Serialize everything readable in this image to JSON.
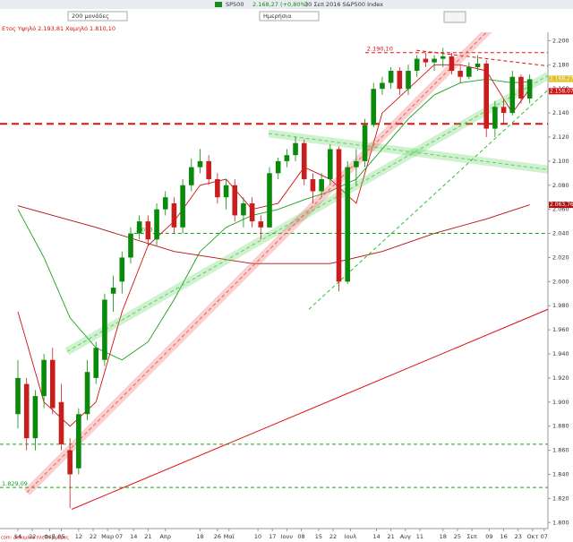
{
  "header": {
    "symbol": "SP500",
    "quote": "2.168,27 (+0,80%)",
    "date": "30 Σεπ 2016 S&P500 Index",
    "range_select": "200 μονάδες",
    "period_select": "Ημερήσια",
    "year_range": "Ετος Υψηλό 2.193,81 Χαμηλό 1.810,10",
    "footer": "com: Δεδομένα πλείον ημέρας"
  },
  "chart_data": {
    "type": "candlestick",
    "up_color": "#0a8a0a",
    "down_color": "#c81e1e",
    "xlim": [
      -6.2,
      183.3
    ],
    "ylim": [
      1795,
      2207
    ],
    "xticks": [
      {
        "value": 0,
        "label": "14"
      },
      {
        "value": 5,
        "label": "22"
      },
      {
        "value": 11,
        "label": "Φεβ"
      },
      {
        "value": 15,
        "label": "05"
      },
      {
        "value": 21,
        "label": "12"
      },
      {
        "value": 26,
        "label": "22"
      },
      {
        "value": 31,
        "label": "Μαρ"
      },
      {
        "value": 35,
        "label": "07"
      },
      {
        "value": 40,
        "label": "14"
      },
      {
        "value": 45,
        "label": "21"
      },
      {
        "value": 51,
        "label": "Απρ"
      },
      {
        "value": 63,
        "label": "18"
      },
      {
        "value": 69,
        "label": "26"
      },
      {
        "value": 73,
        "label": "Μαϊ"
      },
      {
        "value": 83,
        "label": "10"
      },
      {
        "value": 88,
        "label": "17"
      },
      {
        "value": 93,
        "label": "Ιουν"
      },
      {
        "value": 98,
        "label": "08"
      },
      {
        "value": 104,
        "label": "15"
      },
      {
        "value": 109,
        "label": "22"
      },
      {
        "value": 115,
        "label": "Ιουλ"
      },
      {
        "value": 124,
        "label": "14"
      },
      {
        "value": 129,
        "label": "21"
      },
      {
        "value": 134,
        "label": "Αυγ"
      },
      {
        "value": 139,
        "label": "11"
      },
      {
        "value": 147,
        "label": "18"
      },
      {
        "value": 152,
        "label": "25"
      },
      {
        "value": 157,
        "label": "Σεπ"
      },
      {
        "value": 163,
        "label": "09"
      },
      {
        "value": 168,
        "label": "16"
      },
      {
        "value": 173,
        "label": "23"
      },
      {
        "value": 178,
        "label": "Οκτ"
      },
      {
        "value": 182,
        "label": "07"
      }
    ],
    "yticks": [
      {
        "value": 1800,
        "label": "1.800"
      },
      {
        "value": 1820,
        "label": "1.820"
      },
      {
        "value": 1840,
        "label": "1.840"
      },
      {
        "value": 1860,
        "label": "1.860"
      },
      {
        "value": 1880,
        "label": "1.880"
      },
      {
        "value": 1900,
        "label": "1.900"
      },
      {
        "value": 1920,
        "label": "1.920"
      },
      {
        "value": 1940,
        "label": "1.940"
      },
      {
        "value": 1960,
        "label": "1.960"
      },
      {
        "value": 1980,
        "label": "1.980"
      },
      {
        "value": 2000,
        "label": "2.000"
      },
      {
        "value": 2020,
        "label": "2.020"
      },
      {
        "value": 2040,
        "label": "2.040"
      },
      {
        "value": 2060,
        "label": "2.060"
      },
      {
        "value": 2080,
        "label": "2.080"
      },
      {
        "value": 2100,
        "label": "2.100"
      },
      {
        "value": 2120,
        "label": "2.120"
      },
      {
        "value": 2140,
        "label": "2.140"
      },
      {
        "value": 2160,
        "label": "2.160"
      },
      {
        "value": 2180,
        "label": "2.180"
      },
      {
        "value": 2200,
        "label": "2.200"
      }
    ],
    "x": [
      0,
      3,
      6,
      9,
      12,
      15,
      18,
      21,
      24,
      27,
      30,
      33,
      36,
      39,
      42,
      45,
      48,
      51,
      54,
      57,
      60,
      63,
      66,
      69,
      72,
      75,
      78,
      81,
      84,
      87,
      90,
      93,
      96,
      99,
      102,
      105,
      108,
      111,
      114,
      117,
      120,
      123,
      126,
      129,
      132,
      135,
      138,
      141,
      144,
      147,
      150,
      153,
      156,
      159,
      162,
      165,
      168,
      171,
      174,
      177
    ],
    "ohlc": [
      [
        1890,
        1935,
        1878,
        1920
      ],
      [
        1915,
        1920,
        1860,
        1870
      ],
      [
        1870,
        1910,
        1860,
        1905
      ],
      [
        1905,
        1940,
        1895,
        1935
      ],
      [
        1935,
        1945,
        1890,
        1895
      ],
      [
        1900,
        1915,
        1860,
        1865
      ],
      [
        1860,
        1870,
        1812,
        1840
      ],
      [
        1845,
        1895,
        1840,
        1890
      ],
      [
        1890,
        1935,
        1885,
        1925
      ],
      [
        1920,
        1950,
        1915,
        1945
      ],
      [
        1935,
        1990,
        1930,
        1985
      ],
      [
        1990,
        2005,
        1975,
        1995
      ],
      [
        2000,
        2025,
        1990,
        2020
      ],
      [
        2020,
        2045,
        2015,
        2040
      ],
      [
        2040,
        2055,
        2035,
        2050
      ],
      [
        2050,
        2055,
        2030,
        2035
      ],
      [
        2035,
        2065,
        2030,
        2060
      ],
      [
        2060,
        2075,
        2055,
        2070
      ],
      [
        2065,
        2070,
        2040,
        2045
      ],
      [
        2045,
        2085,
        2040,
        2080
      ],
      [
        2080,
        2102,
        2075,
        2095
      ],
      [
        2095,
        2110,
        2090,
        2100
      ],
      [
        2100,
        2105,
        2080,
        2085
      ],
      [
        2085,
        2090,
        2065,
        2070
      ],
      [
        2070,
        2085,
        2060,
        2080
      ],
      [
        2080,
        2085,
        2050,
        2055
      ],
      [
        2055,
        2070,
        2045,
        2065
      ],
      [
        2065,
        2070,
        2045,
        2050
      ],
      [
        2050,
        2055,
        2035,
        2045
      ],
      [
        2045,
        2095,
        2045,
        2090
      ],
      [
        2090,
        2103,
        2085,
        2100
      ],
      [
        2100,
        2110,
        2095,
        2105
      ],
      [
        2105,
        2120,
        2100,
        2115
      ],
      [
        2115,
        2118,
        2080,
        2085
      ],
      [
        2085,
        2090,
        2065,
        2075
      ],
      [
        2075,
        2090,
        2070,
        2085
      ],
      [
        2085,
        2114,
        2080,
        2110
      ],
      [
        2110,
        2112,
        1992,
        2000
      ],
      [
        2000,
        2100,
        1998,
        2095
      ],
      [
        2095,
        2110,
        2080,
        2100
      ],
      [
        2100,
        2135,
        2095,
        2130
      ],
      [
        2130,
        2165,
        2128,
        2160
      ],
      [
        2160,
        2170,
        2155,
        2165
      ],
      [
        2165,
        2178,
        2160,
        2175
      ],
      [
        2175,
        2178,
        2155,
        2160
      ],
      [
        2160,
        2180,
        2155,
        2175
      ],
      [
        2175,
        2188,
        2170,
        2185
      ],
      [
        2185,
        2190,
        2178,
        2182
      ],
      [
        2182,
        2188,
        2175,
        2185
      ],
      [
        2185,
        2194,
        2178,
        2187
      ],
      [
        2187,
        2190,
        2172,
        2175
      ],
      [
        2175,
        2180,
        2165,
        2170
      ],
      [
        2170,
        2182,
        2168,
        2178
      ],
      [
        2178,
        2188,
        2175,
        2181
      ],
      [
        2181,
        2184,
        2120,
        2127
      ],
      [
        2127,
        2150,
        2120,
        2145
      ],
      [
        2145,
        2152,
        2130,
        2140
      ],
      [
        2140,
        2175,
        2138,
        2170
      ],
      [
        2170,
        2172,
        2148,
        2152
      ],
      [
        2152,
        2172,
        2148,
        2168
      ]
    ],
    "lines": [
      {
        "color": "#d01010",
        "x": [
          0,
          9,
          18,
          27,
          36,
          45,
          54,
          63,
          72,
          81,
          90,
          99,
          108,
          117,
          126,
          135,
          144,
          153,
          162,
          171,
          177
        ],
        "values": [
          1975,
          1900,
          1880,
          1900,
          1975,
          2030,
          2050,
          2080,
          2085,
          2060,
          2065,
          2095,
          2085,
          2065,
          2140,
          2160,
          2180,
          2180,
          2175,
          2140,
          2160
        ]
      },
      {
        "color": "#1aa01a",
        "x": [
          0,
          9,
          18,
          27,
          36,
          45,
          54,
          63,
          72,
          81,
          90,
          99,
          108,
          117,
          126,
          135,
          144,
          153,
          162,
          171,
          177
        ],
        "values": [
          2060,
          2020,
          1970,
          1945,
          1935,
          1950,
          1985,
          2025,
          2045,
          2055,
          2060,
          2068,
          2075,
          2085,
          2110,
          2135,
          2155,
          2165,
          2168,
          2165,
          2166
        ]
      },
      {
        "color": "#b01010",
        "x": [
          0,
          27,
          54,
          81,
          108,
          126,
          144,
          162,
          177
        ],
        "values": [
          2063,
          2045,
          2025,
          2015,
          2015,
          2025,
          2040,
          2052,
          2063.76
        ]
      }
    ],
    "trendlines": [
      {
        "x": [
          18.6,
          183.3
        ],
        "y": [
          1811,
          1977
        ],
        "color": "#e01010",
        "dash": false,
        "band": false
      },
      {
        "x": [
          120.1,
          183.3
        ],
        "y": [
          2190.1,
          2190.1
        ],
        "color": "#e01010",
        "dash": true,
        "band": false,
        "label": "2.190,10"
      },
      {
        "x": [
          -6.2,
          183.3
        ],
        "y": [
          2131,
          2131
        ],
        "color": "#e01010",
        "dash": true,
        "band": false,
        "thick": true
      },
      {
        "x": [
          40.2,
          183.3
        ],
        "y": [
          2040,
          2040
        ],
        "color": "#1aa01a",
        "dash": true,
        "band": false,
        "label": "2.040"
      },
      {
        "x": [
          -6.2,
          183.3
        ],
        "y": [
          1865,
          1865
        ],
        "color": "#1aa01a",
        "dash": true,
        "band": false
      },
      {
        "x": [
          -6.2,
          183.3
        ],
        "y": [
          1829.09,
          1829.09
        ],
        "color": "#1aa01a",
        "dash": true,
        "band": false,
        "label": "1.829,09"
      },
      {
        "x": [
          137.8,
          183.3
        ],
        "y": [
          2192,
          2179
        ],
        "color": "#e01010",
        "dash": true,
        "band": false
      },
      {
        "x": [
          17,
          183.3
        ],
        "y": [
          1942,
          2171
        ],
        "color": "#60d060",
        "dash": true,
        "band": true
      },
      {
        "x": [
          86.7,
          183.3
        ],
        "y": [
          2123,
          2093
        ],
        "color": "#60d060",
        "dash": true,
        "band": true
      },
      {
        "x": [
          100.6,
          183.3
        ],
        "y": [
          1977,
          2159
        ],
        "color": "#30c030",
        "dash": true,
        "band": false
      },
      {
        "x": [
          3.1,
          164.1
        ],
        "y": [
          1825,
          2212
        ],
        "color": "#f06060",
        "dash": true,
        "band": true
      }
    ],
    "price_labels": [
      {
        "value": 2168.33,
        "label": "2.168,33",
        "color": "#1aa01a"
      },
      {
        "value": 2168.27,
        "label": "2.168,27",
        "color": "#e0c020"
      },
      {
        "value": 2158.07,
        "label": "2.158,07",
        "color": "#d01010"
      },
      {
        "value": 2063.76,
        "label": "2.063,76",
        "color": "#b01010"
      }
    ]
  }
}
